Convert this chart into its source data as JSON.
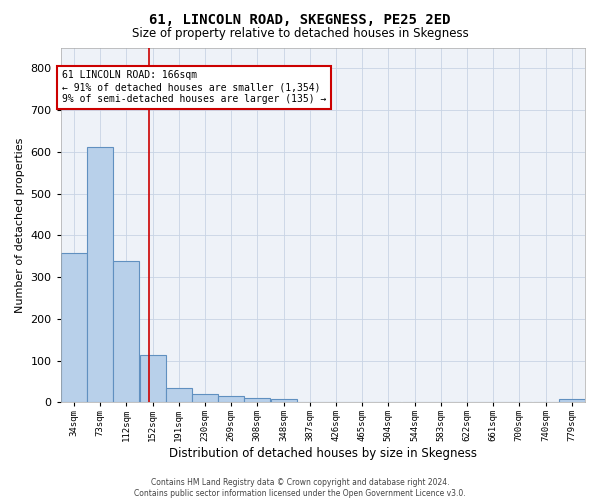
{
  "title": "61, LINCOLN ROAD, SKEGNESS, PE25 2ED",
  "subtitle": "Size of property relative to detached houses in Skegness",
  "xlabel": "Distribution of detached houses by size in Skegness",
  "ylabel": "Number of detached properties",
  "footer1": "Contains HM Land Registry data © Crown copyright and database right 2024.",
  "footer2": "Contains public sector information licensed under the Open Government Licence v3.0.",
  "annotation_line1": "61 LINCOLN ROAD: 166sqm",
  "annotation_line2": "← 91% of detached houses are smaller (1,354)",
  "annotation_line3": "9% of semi-detached houses are larger (135) →",
  "bin_edges": [
    34,
    73,
    112,
    152,
    191,
    230,
    269,
    308,
    348,
    387,
    426,
    465,
    504,
    544,
    583,
    622,
    661,
    700,
    740,
    779,
    818
  ],
  "bar_heights": [
    358,
    612,
    338,
    113,
    35,
    20,
    15,
    10,
    8,
    0,
    0,
    0,
    0,
    0,
    0,
    0,
    0,
    0,
    0,
    8
  ],
  "bar_color": "#b8d0ea",
  "bar_edge_color": "#6090c0",
  "grid_color": "#c8d4e4",
  "vline_color": "#cc0000",
  "vline_x": 166,
  "ylim": [
    0,
    850
  ],
  "yticks": [
    0,
    100,
    200,
    300,
    400,
    500,
    600,
    700,
    800
  ],
  "annotation_box_color": "#cc0000",
  "bg_color": "#eef2f8"
}
